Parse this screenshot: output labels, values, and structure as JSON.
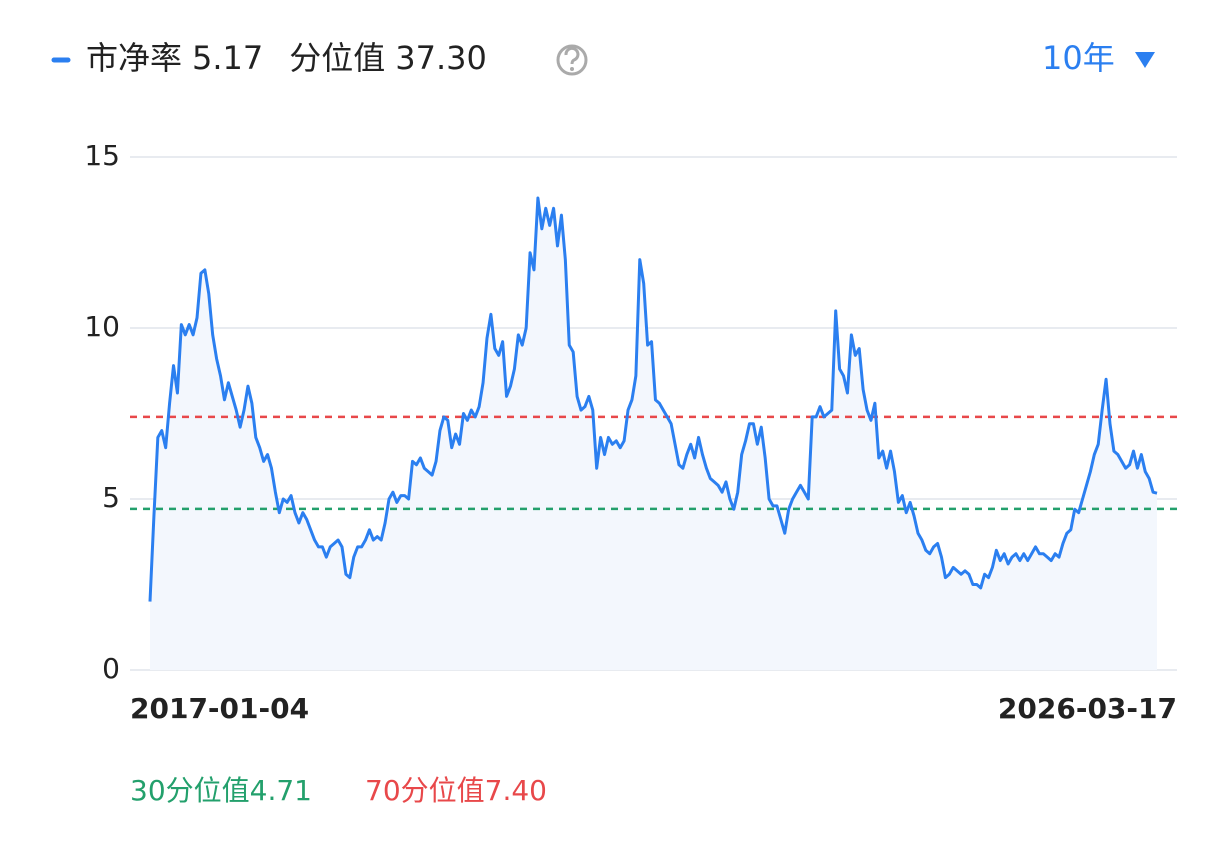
{
  "chart_data": {
    "type": "line",
    "series": [
      {
        "name": "市净率",
        "color": "#2b7ff0",
        "fill": "#f3f7fd",
        "values": [
          2.0,
          4.5,
          6.8,
          7.0,
          6.5,
          7.8,
          8.9,
          8.1,
          10.1,
          9.8,
          10.1,
          9.8,
          10.3,
          11.6,
          11.7,
          11.0,
          9.8,
          9.1,
          8.6,
          7.9,
          8.4,
          8.0,
          7.6,
          7.1,
          7.6,
          8.3,
          7.8,
          6.8,
          6.5,
          6.1,
          6.3,
          5.9,
          5.2,
          4.6,
          5.0,
          4.9,
          5.1,
          4.6,
          4.3,
          4.6,
          4.4,
          4.1,
          3.8,
          3.6,
          3.6,
          3.3,
          3.6,
          3.7,
          3.8,
          3.6,
          2.8,
          2.7,
          3.3,
          3.6,
          3.6,
          3.8,
          4.1,
          3.8,
          3.9,
          3.8,
          4.3,
          5.0,
          5.2,
          4.9,
          5.1,
          5.1,
          5.0,
          6.1,
          6.0,
          6.2,
          5.9,
          5.8,
          5.7,
          6.1,
          7.0,
          7.4,
          7.3,
          6.5,
          6.9,
          6.6,
          7.5,
          7.3,
          7.6,
          7.4,
          7.7,
          8.4,
          9.7,
          10.4,
          9.4,
          9.2,
          9.6,
          8.0,
          8.3,
          8.8,
          9.8,
          9.5,
          10.0,
          12.2,
          11.7,
          13.8,
          12.9,
          13.5,
          13.0,
          13.5,
          12.4,
          13.3,
          12.0,
          9.5,
          9.3,
          8.0,
          7.6,
          7.7,
          8.0,
          7.6,
          5.9,
          6.8,
          6.3,
          6.8,
          6.6,
          6.7,
          6.5,
          6.7,
          7.6,
          7.9,
          8.6,
          12.0,
          11.3,
          9.5,
          9.6,
          7.9,
          7.8,
          7.6,
          7.4,
          7.2,
          6.6,
          6.0,
          5.9,
          6.3,
          6.6,
          6.2,
          6.8,
          6.3,
          5.9,
          5.6,
          5.5,
          5.4,
          5.2,
          5.5,
          5.0,
          4.7,
          5.2,
          6.3,
          6.7,
          7.2,
          7.2,
          6.6,
          7.1,
          6.2,
          5.0,
          4.8,
          4.8,
          4.4,
          4.0,
          4.7,
          5.0,
          5.2,
          5.4,
          5.2,
          5.0,
          7.4,
          7.4,
          7.7,
          7.4,
          7.5,
          7.6,
          10.5,
          8.8,
          8.6,
          8.1,
          9.8,
          9.2,
          9.4,
          8.2,
          7.6,
          7.3,
          7.8,
          6.2,
          6.4,
          5.9,
          6.4,
          5.8,
          4.9,
          5.1,
          4.6,
          4.9,
          4.5,
          4.0,
          3.8,
          3.5,
          3.4,
          3.6,
          3.7,
          3.3,
          2.7,
          2.8,
          3.0,
          2.9,
          2.8,
          2.9,
          2.8,
          2.5,
          2.5,
          2.4,
          2.8,
          2.7,
          3.0,
          3.5,
          3.2,
          3.4,
          3.1,
          3.3,
          3.4,
          3.2,
          3.4,
          3.2,
          3.4,
          3.6,
          3.4,
          3.4,
          3.3,
          3.2,
          3.4,
          3.3,
          3.7,
          4.0,
          4.1,
          4.7,
          4.6,
          5.0,
          5.4,
          5.8,
          6.3,
          6.6,
          7.6,
          8.5,
          7.2,
          6.4,
          6.3,
          6.1,
          5.9,
          6.0,
          6.4,
          5.9,
          6.3,
          5.8,
          5.6,
          5.2,
          5.17
        ]
      }
    ],
    "categories": [
      "2017-01-04",
      null,
      null,
      null,
      null,
      null,
      null,
      null,
      null,
      null,
      null,
      null,
      null,
      null,
      null,
      null,
      null,
      null,
      null,
      null,
      null,
      null,
      null,
      null,
      null,
      null,
      null,
      null,
      null,
      null,
      null,
      null,
      null,
      null,
      null,
      null,
      null,
      null,
      null,
      null,
      null,
      null,
      null,
      null,
      null,
      null,
      null,
      null,
      null,
      null,
      null,
      null,
      null,
      null,
      null,
      null,
      null,
      null,
      null,
      null,
      null,
      null,
      null,
      null,
      null,
      null,
      null,
      null,
      null,
      null,
      null,
      null,
      null,
      null,
      null,
      null,
      null,
      null,
      null,
      null,
      null,
      null,
      null,
      null,
      null,
      null,
      null,
      null,
      null,
      null,
      null,
      null,
      null,
      null,
      null,
      null,
      null,
      null,
      null,
      null,
      null,
      null,
      null,
      null,
      null,
      null,
      null,
      null,
      null,
      null,
      null,
      null,
      null,
      null,
      null,
      null,
      null,
      null,
      null,
      null,
      null,
      null,
      null,
      null,
      null,
      null,
      null,
      null,
      null,
      null,
      null,
      null,
      null,
      null,
      null,
      null,
      null,
      null,
      null,
      null,
      null,
      null,
      null,
      null,
      null,
      null,
      null,
      null,
      null,
      null,
      null,
      null,
      null,
      null,
      null,
      null,
      null,
      null,
      null,
      null,
      null,
      null,
      null,
      null,
      null,
      null,
      null,
      null,
      null,
      null,
      null,
      null,
      null,
      null,
      null,
      null,
      null,
      null,
      null,
      null,
      null,
      null,
      null,
      null,
      null,
      null,
      null,
      null,
      null,
      null,
      null,
      null,
      null,
      null,
      null,
      null,
      null,
      null,
      null,
      null,
      null,
      null,
      null,
      null,
      null,
      null,
      null,
      null,
      null,
      null,
      null,
      null,
      null,
      null,
      null,
      null,
      null,
      null,
      null,
      null,
      null,
      null,
      null,
      null,
      null,
      null,
      null,
      null,
      null,
      null,
      null,
      null,
      null,
      null,
      null,
      null,
      null,
      null,
      null,
      null,
      null,
      null,
      null,
      null,
      null,
      null,
      null,
      null,
      null,
      null,
      null,
      null,
      null,
      null,
      null,
      null,
      null,
      "2026-03-17"
    ],
    "current_value": 5.17,
    "percentile": {
      "label": "分位值",
      "value": 37.3,
      "value_label": "37.30"
    },
    "range_selector": "10年",
    "ylim": [
      0,
      15
    ],
    "yticks": [
      0,
      5,
      10,
      15
    ],
    "grid": true,
    "reference_lines": [
      {
        "name": "30分位值",
        "value": 4.71,
        "color": "#23a06c"
      },
      {
        "name": "70分位值",
        "value": 7.4,
        "value_label": "7.40",
        "color": "#e8484a"
      }
    ]
  }
}
